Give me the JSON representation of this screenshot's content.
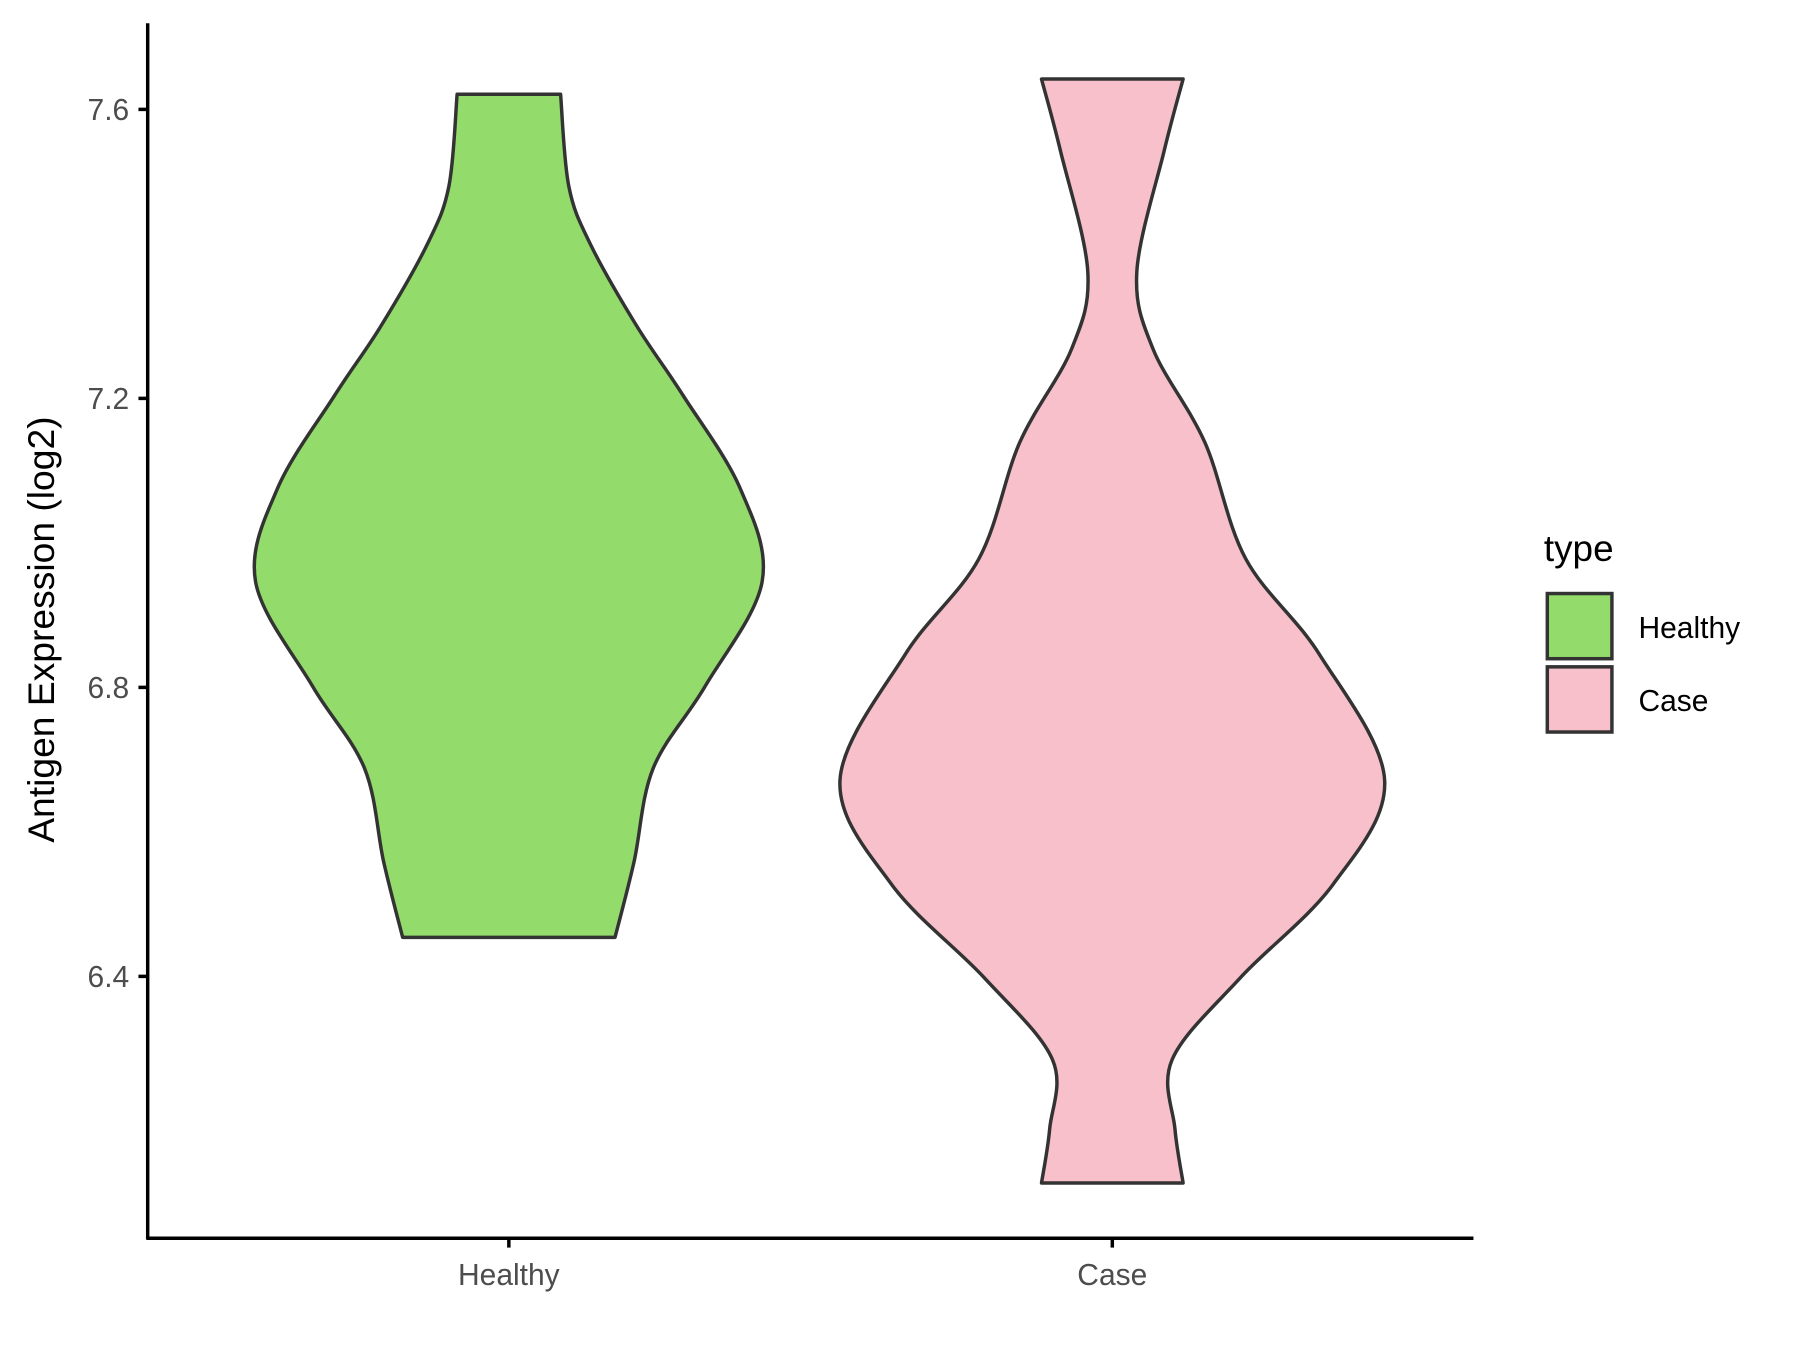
{
  "chart_data": {
    "type": "violin",
    "title": "",
    "xlabel": "",
    "ylabel": "Antigen Expression (log2)",
    "categories": [
      "Healthy",
      "Case"
    ],
    "y_ticks": [
      "6.4",
      "6.8",
      "7.2",
      "7.6"
    ],
    "ylim": [
      6.05,
      7.72
    ],
    "grid": false,
    "legend": {
      "title": "type",
      "position": "right",
      "entries": [
        "Healthy",
        "Case"
      ]
    },
    "series": [
      {
        "name": "Healthy",
        "color": "#93DC6B",
        "min": 6.454,
        "max": 7.621,
        "density_profile": [
          [
            7.621,
            0.19
          ],
          [
            7.494,
            0.22
          ],
          [
            7.413,
            0.3
          ],
          [
            7.3,
            0.47
          ],
          [
            7.204,
            0.64
          ],
          [
            7.075,
            0.85
          ],
          [
            6.946,
            0.93
          ],
          [
            6.801,
            0.72
          ],
          [
            6.688,
            0.53
          ],
          [
            6.559,
            0.46
          ],
          [
            6.454,
            0.39
          ]
        ]
      },
      {
        "name": "Case",
        "color": "#F7C0CB",
        "min": 6.114,
        "max": 7.642,
        "density_profile": [
          [
            7.642,
            0.26
          ],
          [
            7.542,
            0.19
          ],
          [
            7.375,
            0.09
          ],
          [
            7.268,
            0.15
          ],
          [
            7.139,
            0.34
          ],
          [
            6.978,
            0.49
          ],
          [
            6.846,
            0.76
          ],
          [
            6.672,
            1.0
          ],
          [
            6.527,
            0.81
          ],
          [
            6.398,
            0.47
          ],
          [
            6.285,
            0.22
          ],
          [
            6.189,
            0.23
          ],
          [
            6.114,
            0.26
          ]
        ]
      }
    ],
    "outline_color": "#333333"
  }
}
